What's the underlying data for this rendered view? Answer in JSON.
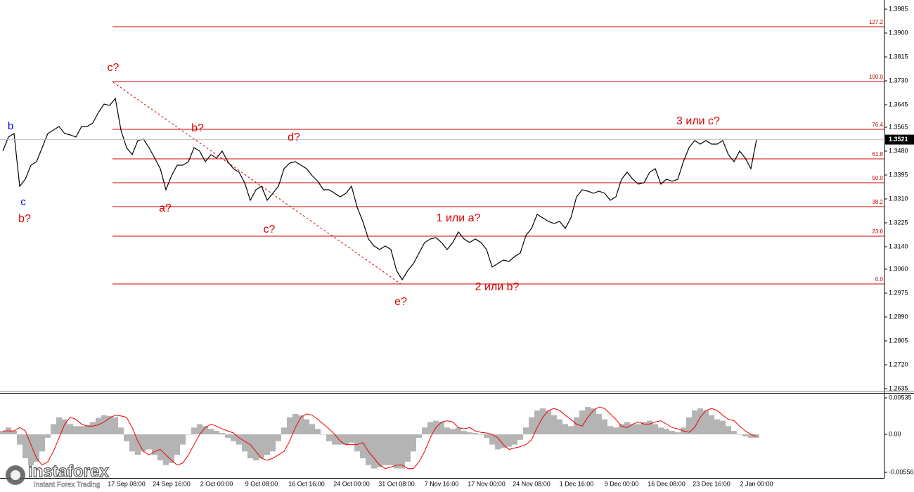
{
  "chart_data": [
    {
      "type": "line",
      "categories": [
        null,
        null,
        null,
        null,
        null,
        null,
        null,
        null,
        null,
        null,
        null,
        null,
        null,
        null,
        null,
        null,
        null,
        null,
        null,
        null,
        null,
        null,
        "17 Sep 08:00",
        null,
        null,
        null,
        null,
        null,
        null,
        null,
        "24 Sep 16:00",
        null,
        null,
        null,
        null,
        null,
        null,
        null,
        "2 Oct 00:00",
        null,
        null,
        null,
        null,
        null,
        null,
        null,
        "9 Oct 08:00",
        null,
        null,
        null,
        null,
        null,
        null,
        null,
        "16 Oct 16:00",
        null,
        null,
        null,
        null,
        null,
        null,
        null,
        "24 Oct 00:00",
        null,
        null,
        null,
        null,
        null,
        null,
        null,
        "31 Oct 08:00",
        null,
        null,
        null,
        null,
        null,
        null,
        null,
        "7 Nov 16:00",
        null,
        null,
        null,
        null,
        null,
        null,
        null,
        "17 Nov 00:00",
        null,
        null,
        null,
        null,
        null,
        null,
        null,
        "24 Nov 08:00",
        null,
        null,
        null,
        null,
        null,
        null,
        null,
        "1 Dec 16:00",
        null,
        null,
        null,
        null,
        null,
        null,
        null,
        "9 Dec 00:00",
        null,
        null,
        null,
        null,
        null,
        null,
        null,
        "16 Dec 08:00",
        null,
        null,
        null,
        null,
        null,
        null,
        null,
        "23 Dec 16:00",
        null,
        null,
        null,
        null,
        null,
        null,
        null,
        "2 Jan 00:00"
      ],
      "series": [
        {
          "color": "#000000",
          "values": [
            1.348,
            1.353,
            1.35425,
            1.3355,
            1.338,
            1.343,
            1.34425,
            1.34925,
            1.35425,
            1.3555,
            1.35675,
            1.35425,
            1.35375,
            1.353,
            1.35675,
            1.35675,
            1.358,
            1.36175,
            1.36475,
            1.36425,
            1.36675,
            1.3555,
            1.34925,
            1.34675,
            1.35175,
            1.35225,
            1.34925,
            1.3455,
            1.34175,
            1.33425,
            1.33925,
            1.343,
            1.343,
            1.34425,
            1.34925,
            1.348,
            1.34425,
            1.34675,
            1.3455,
            1.348,
            1.34425,
            1.34175,
            1.3405,
            1.33675,
            1.3305,
            1.33425,
            1.3355,
            1.3305,
            1.333,
            1.3355,
            1.34175,
            1.34375,
            1.34425,
            1.343,
            1.34175,
            1.33925,
            1.33725,
            1.33425,
            1.33425,
            1.333,
            1.33175,
            1.333,
            1.3355,
            1.328,
            1.323,
            1.31675,
            1.31425,
            1.313,
            1.31425,
            1.313,
            1.3055,
            1.30225,
            1.3055,
            1.308,
            1.31175,
            1.3155,
            1.31675,
            1.31725,
            1.3155,
            1.313,
            1.3155,
            1.31925,
            1.31675,
            1.3155,
            1.31675,
            1.3155,
            1.313,
            1.30675,
            1.308,
            1.30925,
            1.30875,
            1.3105,
            1.31175,
            1.318,
            1.3205,
            1.3255,
            1.32425,
            1.323,
            1.32225,
            1.323,
            1.3205,
            1.32425,
            1.33175,
            1.33425,
            1.33375,
            1.333,
            1.33375,
            1.333,
            1.3305,
            1.33175,
            1.338,
            1.3405,
            1.338,
            1.33625,
            1.33675,
            1.3405,
            1.34175,
            1.33625,
            1.338,
            1.33725,
            1.338,
            1.34425,
            1.34925,
            1.35175,
            1.3505,
            1.35175,
            1.3505,
            1.3505,
            1.35175,
            1.34675,
            1.34425,
            1.348,
            1.3455,
            1.34175,
            1.3521
          ]
        }
      ],
      "ylim": [
        1.26275,
        1.40175
      ],
      "yticks": [
        {
          "value": 1.3985,
          "label": "1.3985"
        },
        {
          "value": 1.39,
          "label": "1.3900"
        },
        {
          "value": 1.3815,
          "label": "1.3815"
        },
        {
          "value": 1.373,
          "label": "1.3730"
        },
        {
          "value": 1.3645,
          "label": "1.3645"
        },
        {
          "value": 1.3565,
          "label": "1.3565"
        },
        {
          "value": 1.348,
          "label": "1.3480"
        },
        {
          "value": 1.3395,
          "label": "1.3395"
        },
        {
          "value": 1.331,
          "label": "1.3310"
        },
        {
          "value": 1.3225,
          "label": "1.3225"
        },
        {
          "value": 1.314,
          "label": "1.3140"
        },
        {
          "value": 1.306,
          "label": "1.3060"
        },
        {
          "value": 1.2975,
          "label": "1.2975"
        },
        {
          "value": 1.289,
          "label": "1.2890"
        },
        {
          "value": 1.2805,
          "label": "1.2805"
        },
        {
          "value": 1.272,
          "label": "1.2720"
        },
        {
          "value": 1.2635,
          "label": "1.2635"
        }
      ],
      "fib_levels": [
        {
          "name": "127.2",
          "price": 1.39225
        },
        {
          "name": "100.0",
          "price": 1.37275
        },
        {
          "name": "76.4",
          "price": 1.35575
        },
        {
          "name": "61.8",
          "price": 1.34525
        },
        {
          "name": "50.0",
          "price": 1.33675
        },
        {
          "name": "38.2",
          "price": 1.32825
        },
        {
          "name": "23.6",
          "price": 1.31775
        },
        {
          "name": "0.0",
          "price": 1.30075
        }
      ],
      "fib_color": "#cc0000",
      "current_price": 1.3521,
      "annotations": [
        {
          "text": "b",
          "color": "#0000ee"
        },
        {
          "text": "c",
          "color": "#0000ee"
        },
        {
          "text": "b?",
          "color": "#dd0000"
        },
        {
          "text": "c?",
          "color": "#dd0000"
        },
        {
          "text": "b?",
          "color": "#dd0000"
        },
        {
          "text": "a?",
          "color": "#dd0000"
        },
        {
          "text": "c?",
          "color": "#dd0000"
        },
        {
          "text": "d?",
          "color": "#dd0000"
        },
        {
          "text": "e?",
          "color": "#dd0000"
        },
        {
          "text": "1 или a?",
          "color": "#dd0000"
        },
        {
          "text": "2 или b?",
          "color": "#dd0000"
        },
        {
          "text": "3 или c?",
          "color": "#dd0000"
        }
      ],
      "brand": {
        "name": "instaforex",
        "tagline": "Instant Forex Trading"
      }
    },
    {
      "type": "macd",
      "series": [
        {
          "type": "bar",
          "color": "#b4b4b4",
          "values": [
            0.0005,
            0.001,
            0.0005,
            -0.0015,
            -0.0035,
            -0.0045,
            -0.004,
            -0.0025,
            -0.0005,
            0.0015,
            0.0025,
            0.0022,
            0.0015,
            0.0012,
            0.0012,
            0.0014,
            0.0018,
            0.0024,
            0.0028,
            0.0027,
            0.0025,
            0.001,
            -0.001,
            -0.0025,
            -0.003,
            -0.0025,
            -0.0022,
            -0.003,
            -0.0038,
            -0.0045,
            -0.0042,
            -0.003,
            -0.0015,
            0,
            0.001,
            0.0015,
            0.0012,
            0.0008,
            0.0005,
            0.0002,
            -0.0005,
            -0.001,
            -0.0015,
            -0.0025,
            -0.0035,
            -0.0038,
            -0.0035,
            -0.003,
            -0.0025,
            -0.001,
            0.001,
            0.0025,
            0.003,
            0.0028,
            0.0022,
            0.0015,
            0.0008,
            0,
            -0.001,
            -0.0015,
            -0.0015,
            -0.0015,
            -0.0012,
            -0.0025,
            -0.0035,
            -0.0045,
            -0.005,
            -0.0048,
            -0.0045,
            -0.0045,
            -0.005,
            -0.005,
            -0.004,
            -0.0025,
            -0.0005,
            0.001,
            0.0018,
            0.002,
            0.0018,
            0.001,
            0.0008,
            0.001,
            0.0005,
            0.0003,
            0.0002,
            0,
            -0.0005,
            -0.0015,
            -0.0022,
            -0.002,
            -0.0018,
            -0.0015,
            -0.0008,
            0.001,
            0.0025,
            0.0035,
            0.0038,
            0.0035,
            0.0028,
            0.0022,
            0.0015,
            0.0012,
            0.0025,
            0.0035,
            0.004,
            0.0038,
            0.003,
            0.0022,
            0.0012,
            0.001,
            0.0015,
            0.0018,
            0.0015,
            0.0015,
            0.0018,
            0.002,
            0.0015,
            0.001,
            0.0008,
            0.0005,
            0.0003,
            0.001,
            0.0025,
            0.0035,
            0.0038,
            0.0035,
            0.0028,
            0.0022,
            0.002,
            0.0012,
            0.0005,
            0,
            -0.0003,
            -0.0005,
            -0.0005
          ]
        },
        {
          "type": "line",
          "color": "#ee0000",
          "values": [
            0.0005,
            0.0005,
            0.0005,
            0.001,
            0.0005,
            -0.0015,
            -0.0035,
            -0.0045,
            -0.004,
            -0.0025,
            -0.0005,
            0.0015,
            0.0025,
            0.0022,
            0.0015,
            0.0012,
            0.0012,
            0.0014,
            0.0018,
            0.0024,
            0.0028,
            0.0027,
            0.0025,
            0.001,
            -0.001,
            -0.0025,
            -0.003,
            -0.0025,
            -0.0022,
            -0.003,
            -0.0038,
            -0.0045,
            -0.0042,
            -0.003,
            -0.0015,
            0,
            0.001,
            0.0015,
            0.0012,
            0.0008,
            0.0005,
            0.0002,
            -0.0005,
            -0.001,
            -0.0015,
            -0.0025,
            -0.0035,
            -0.0038,
            -0.0035,
            -0.003,
            -0.0025,
            -0.001,
            0.001,
            0.0025,
            0.003,
            0.0028,
            0.0022,
            0.0015,
            0.0008,
            0,
            -0.001,
            -0.0015,
            -0.0015,
            -0.0015,
            -0.0012,
            -0.0025,
            -0.0035,
            -0.0045,
            -0.005,
            -0.0048,
            -0.0045,
            -0.0045,
            -0.005,
            -0.005,
            -0.004,
            -0.0025,
            -0.0005,
            0.001,
            0.0018,
            0.002,
            0.0018,
            0.001,
            0.0008,
            0.001,
            0.0005,
            0.0003,
            0.0002,
            0,
            -0.0005,
            -0.0015,
            -0.0022,
            -0.002,
            -0.0018,
            -0.0015,
            -0.0008,
            0.001,
            0.0025,
            0.0035,
            0.0038,
            0.0035,
            0.0028,
            0.0022,
            0.0015,
            0.0012,
            0.0025,
            0.0035,
            0.004,
            0.0038,
            0.003,
            0.0022,
            0.0012,
            0.001,
            0.0015,
            0.0018,
            0.0015,
            0.0015,
            0.0018,
            0.002,
            0.0015,
            0.001,
            0.0008,
            0.0005,
            0.0003,
            0.001,
            0.0025,
            0.0035,
            0.0038,
            0.0035,
            0.0028,
            0.0022,
            0.002,
            0.0012,
            0.0005,
            0,
            -0.0003
          ]
        }
      ],
      "ylim": [
        -0.00638,
        0.00607
      ],
      "yticks": [
        0.00535,
        {
          "value": 0,
          "label": "0.00"
        },
        -0.00556
      ]
    }
  ]
}
